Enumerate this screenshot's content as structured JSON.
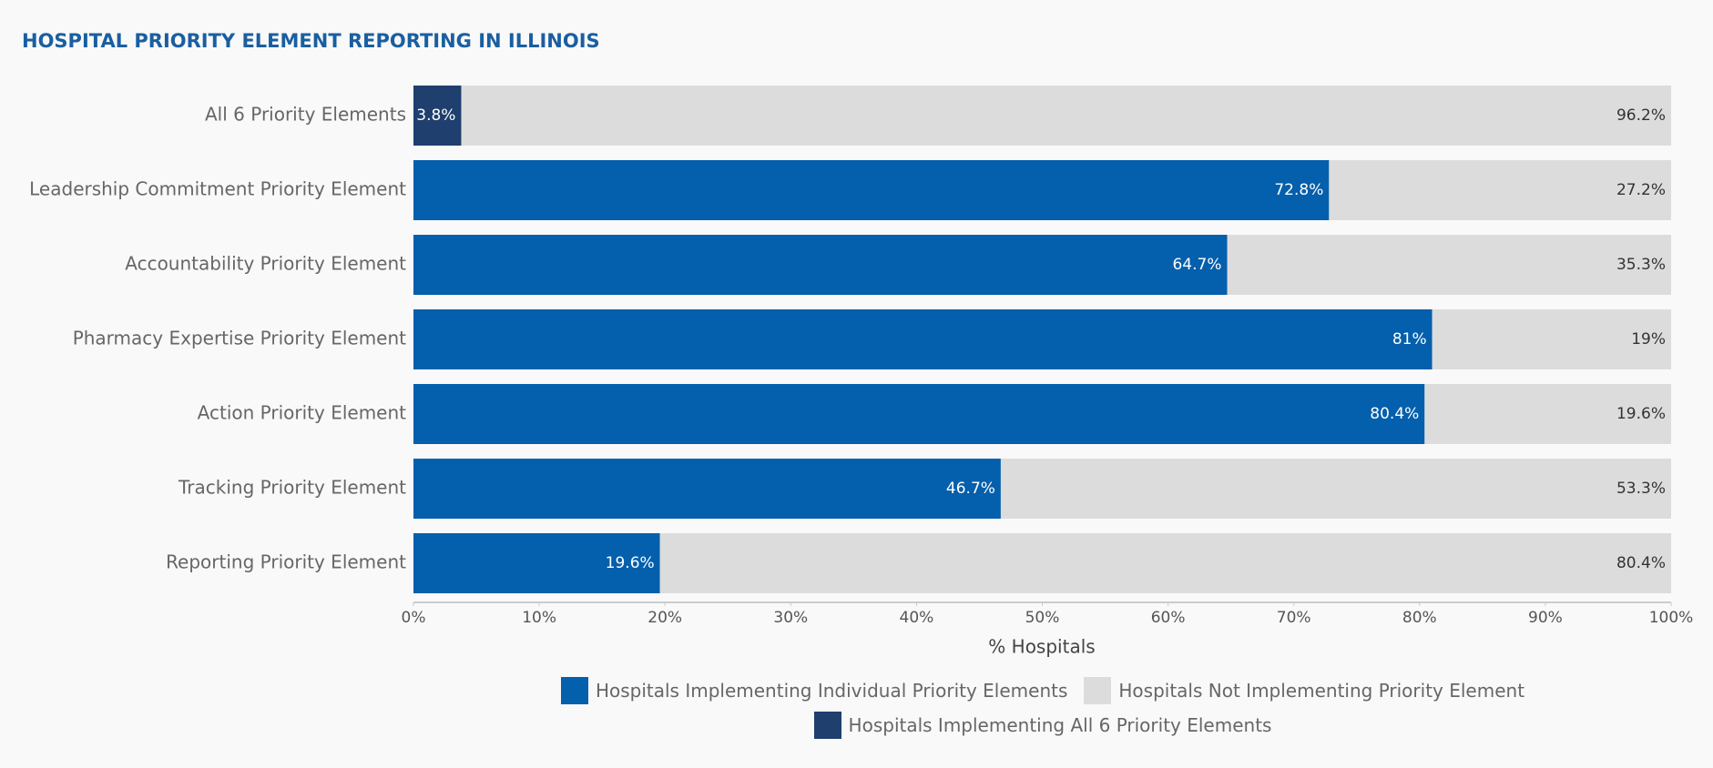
{
  "chart_data": {
    "type": "bar",
    "orientation": "horizontal",
    "stacked": true,
    "title": "HOSPITAL PRIORITY ELEMENT REPORTING IN ILLINOIS",
    "x_label": "% Hospitals",
    "categories": [
      "All 6 Priority Elements",
      "Leadership Commitment Priority Element",
      "Accountability Priority Element",
      "Pharmacy Expertise Priority Element",
      "Action Priority Element",
      "Tracking Priority Element",
      "Reporting Priority Element"
    ],
    "series": [
      {
        "name": "Hospitals Implementing Individual Priority Elements",
        "color": "#045fac",
        "label_color": "#ffffff",
        "values": [
          null,
          72.8,
          64.7,
          81,
          80.4,
          46.7,
          19.6
        ],
        "value_labels": [
          null,
          "72.8%",
          "64.7%",
          "81%",
          "80.4%",
          "46.7%",
          "19.6%"
        ]
      },
      {
        "name": "Hospitals Not Implementing Priority Element",
        "color": "#dcdcdc",
        "label_color": "#333333",
        "values": [
          96.2,
          27.2,
          35.3,
          19,
          19.6,
          53.3,
          80.4
        ],
        "value_labels": [
          "96.2%",
          "27.2%",
          "35.3%",
          "19%",
          "19.6%",
          "53.3%",
          "80.4%"
        ]
      },
      {
        "name": "Hospitals Implementing All 6 Priority Elements",
        "color": "#1f3f6e",
        "label_color": "#ffffff",
        "values": [
          3.8,
          null,
          null,
          null,
          null,
          null,
          null
        ],
        "value_labels": [
          "3.8%",
          null,
          null,
          null,
          null,
          null,
          null
        ]
      }
    ],
    "xlim": [
      0,
      100
    ],
    "xticks": [
      {
        "value": 0,
        "label": "0%"
      },
      {
        "value": 10,
        "label": "10%"
      },
      {
        "value": 20,
        "label": "20%"
      },
      {
        "value": 30,
        "label": "30%"
      },
      {
        "value": 40,
        "label": "40%"
      },
      {
        "value": 50,
        "label": "50%"
      },
      {
        "value": 60,
        "label": "60%"
      },
      {
        "value": 70,
        "label": "70%"
      },
      {
        "value": 80,
        "label": "80%"
      },
      {
        "value": 90,
        "label": "90%"
      },
      {
        "value": 100,
        "label": "100%"
      }
    ],
    "grid": false
  }
}
